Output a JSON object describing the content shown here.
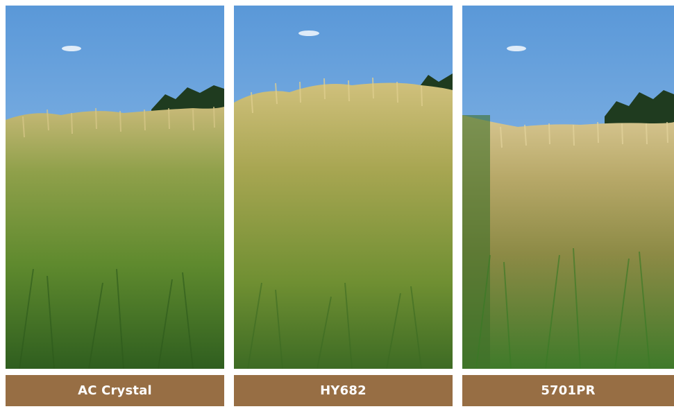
{
  "panels": [
    {
      "caption": "AC Crystal"
    },
    {
      "caption": "HY682"
    },
    {
      "caption": "5701PR"
    }
  ],
  "colors": {
    "caption_background": "#976e44",
    "caption_text": "#ffffff",
    "sky": "#6fa8e0",
    "trees": "#1f3b1f",
    "wheat_heads": "#c9b36a",
    "grass": "#3f7a2a"
  }
}
